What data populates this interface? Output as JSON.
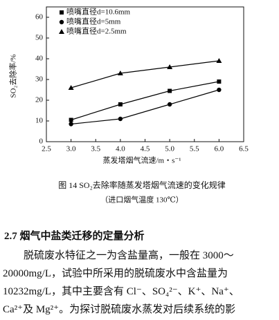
{
  "chart_data": {
    "type": "line",
    "x_label": "蒸发塔烟气流速/m・s⁻¹",
    "y_label": "SO₂去除率/%",
    "x": [
      3,
      4,
      5,
      6
    ],
    "series": [
      {
        "name": "喷嘴直径d=10.6mm",
        "color": "#000000",
        "marker": "square",
        "values": [
          10.5,
          18,
          24.5,
          29
        ]
      },
      {
        "name": "喷嘴直径d=5mm",
        "color": "#000000",
        "marker": "circle",
        "values": [
          8.5,
          11,
          18,
          25
        ]
      },
      {
        "name": "喷嘴直径d=2.5mm",
        "color": "#000000",
        "marker": "triangle",
        "values": [
          26,
          33,
          36,
          39
        ]
      }
    ],
    "xlim": [
      2.5,
      6.5
    ],
    "xticks": [
      2.5,
      {
        "value": 3,
        "label": "3.0"
      },
      3.5,
      {
        "value": 4,
        "label": "4.0"
      },
      4.5,
      {
        "value": 5,
        "label": "5.0"
      },
      5.5,
      {
        "value": 6,
        "label": "6.0"
      },
      6.5
    ],
    "ylim": [
      0,
      65
    ],
    "yticks": [
      0,
      10,
      20,
      30,
      40,
      50,
      60
    ],
    "grid": false,
    "legend": "upper-left"
  },
  "caption": {
    "title": "图 14   SO₂去除率随蒸发塔烟气流速的变化规律",
    "note": "（进口烟气温度 130℃）"
  },
  "section": {
    "heading": "2.7   烟气中盐类迁移的定量分析",
    "lines": [
      "脱硫废水特征之一为含盐量高，一般在 3000～",
      "20000mg/L，试验中所采用的脱硫废水中含盐量为",
      "10232mg/L，其中主要含有 Cl⁻、SO₄²⁻、K⁺、Na⁺、",
      "Ca²⁺及 Mg²⁺。为探讨脱硫废水蒸发对后续系统的影"
    ]
  }
}
